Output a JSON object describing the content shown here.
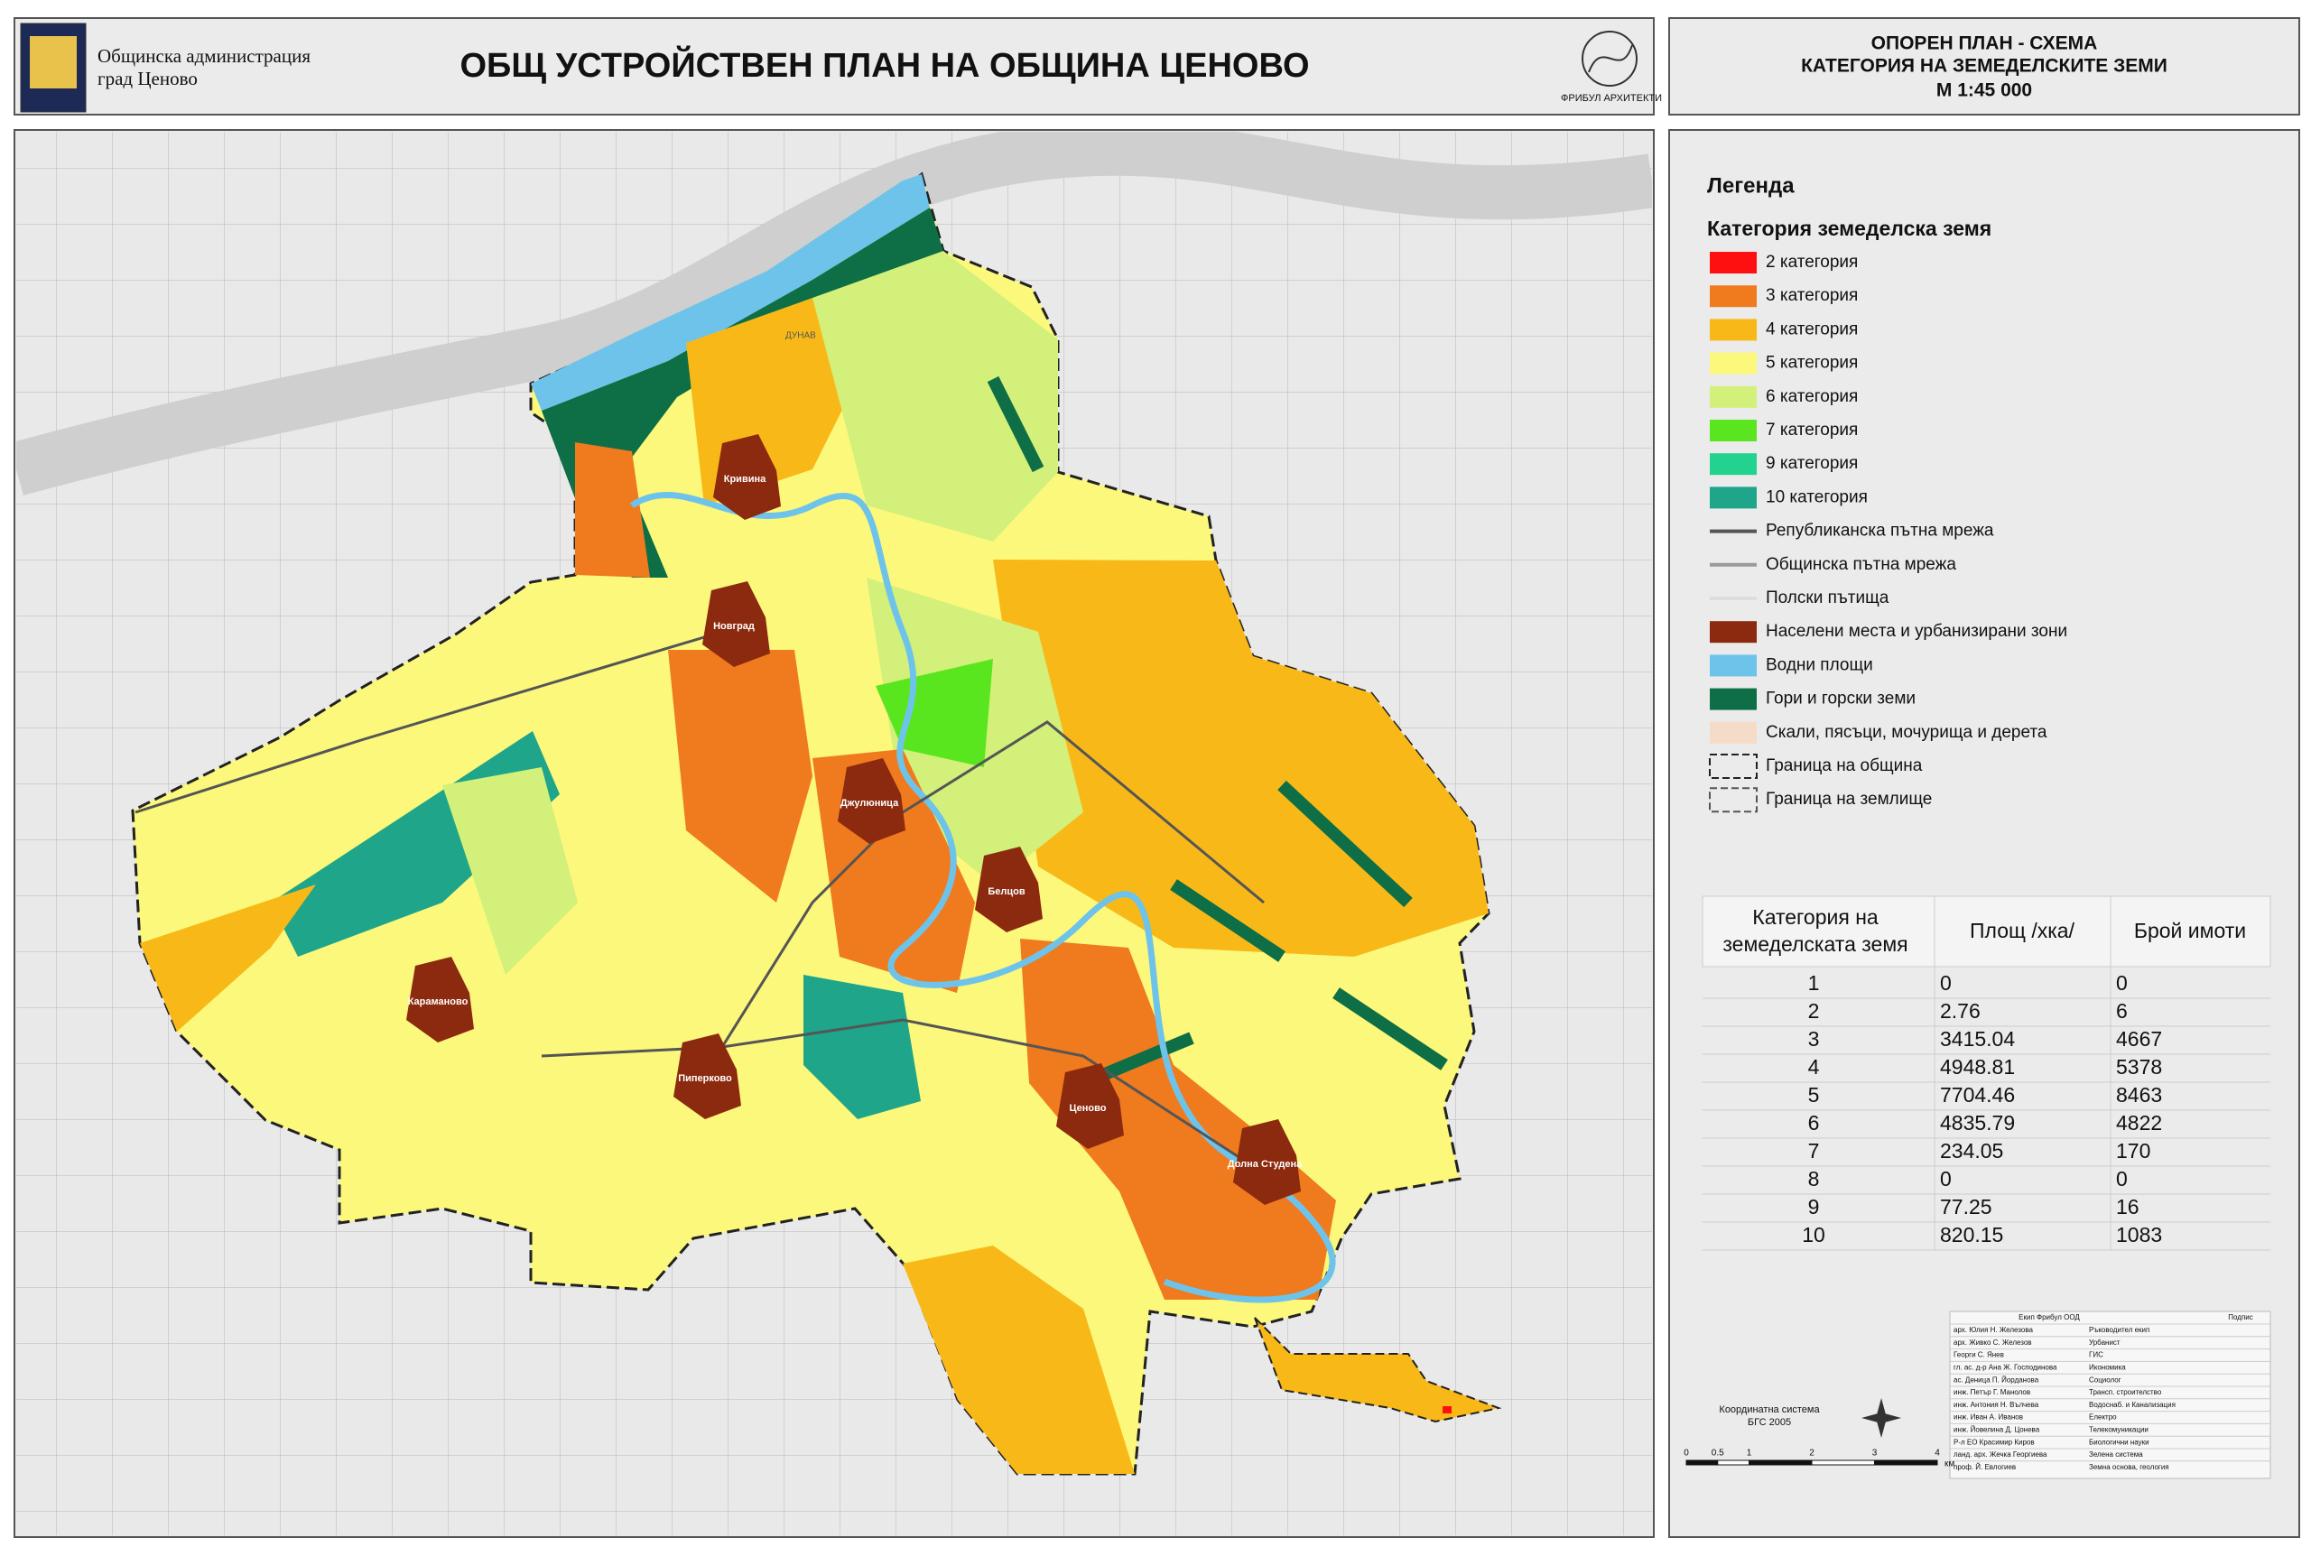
{
  "header": {
    "org_line1": "Общинска администрация",
    "org_line2": "град Ценово",
    "title": "ОБЩ УСТРОЙСТВЕН ПЛАН НА ОБЩИНА ЦЕНОВО",
    "firm": "ФРИБУЛ АРХИТЕКТИ"
  },
  "sheet": {
    "lines": [
      "ОПОРЕН ПЛАН - СХЕМА",
      "КАТЕГОРИЯ НА ЗЕМЕДЕЛСКИТЕ ЗЕМИ",
      "М 1:45 000"
    ]
  },
  "map": {
    "river_label": "ДУНАВ",
    "settlements": [
      "Кривина",
      "Новград",
      "Джулюница",
      "Белцов",
      "Караманово",
      "Пиперково",
      "Ценово",
      "Долна Студена"
    ]
  },
  "legend": {
    "title": "Легенда",
    "subtitle": "Категория земеделска земя",
    "items": [
      {
        "label": "2 категория",
        "color": "#ff1010",
        "kind": "fill"
      },
      {
        "label": "3 категория",
        "color": "#f07a1e",
        "kind": "fill"
      },
      {
        "label": "4 категория",
        "color": "#f8b918",
        "kind": "fill"
      },
      {
        "label": "5 категория",
        "color": "#fbf87c",
        "kind": "fill"
      },
      {
        "label": "6 категория",
        "color": "#d3f07a",
        "kind": "fill"
      },
      {
        "label": "7 категория",
        "color": "#5ae61e",
        "kind": "fill"
      },
      {
        "label": "9 категория",
        "color": "#22d28e",
        "kind": "fill"
      },
      {
        "label": "10 категория",
        "color": "#1ea58a",
        "kind": "fill"
      },
      {
        "label": "Републиканска пътна мрежа",
        "color": "#555555",
        "kind": "line"
      },
      {
        "label": "Общинска пътна мрежа",
        "color": "#9a9a9a",
        "kind": "line"
      },
      {
        "label": "Полски пътища",
        "color": "#dddddd",
        "kind": "line"
      },
      {
        "label": "Населени места и урбанизирани зони",
        "color": "#8b2a0e",
        "kind": "fill"
      },
      {
        "label": "Водни площи",
        "color": "#6ec3ea",
        "kind": "fill"
      },
      {
        "label": "Гори и горски земи",
        "color": "#0e6e46",
        "kind": "fill"
      },
      {
        "label": "Скали, пясъци, мочурища и дерета",
        "color": "#f5dcc8",
        "kind": "fill"
      },
      {
        "label": "Граница на община",
        "color": "#222222",
        "kind": "border"
      },
      {
        "label": "Граница на землище",
        "color": "#555555",
        "kind": "border"
      }
    ]
  },
  "table": {
    "header": [
      [
        "Категория на",
        "земеделската земя"
      ],
      "Площ /хка/",
      "Брой имоти"
    ],
    "rows": [
      [
        1,
        0,
        0
      ],
      [
        2,
        2.76,
        6
      ],
      [
        3,
        3415.04,
        4667
      ],
      [
        4,
        4948.81,
        5378
      ],
      [
        5,
        7704.46,
        8463
      ],
      [
        6,
        4835.79,
        4822
      ],
      [
        7,
        234.05,
        170
      ],
      [
        8,
        0,
        0
      ],
      [
        9,
        77.25,
        16
      ],
      [
        10,
        820.15,
        1083
      ]
    ]
  },
  "team": {
    "header": [
      "Екип Фрибул ООД",
      "Подпис"
    ],
    "rows": [
      [
        "арх. Юлия Н. Железова",
        "Ръководител екип"
      ],
      [
        "арх. Живко С. Железов",
        "Урбанист"
      ],
      [
        "Георги С. Янев",
        "ГИС"
      ],
      [
        "гл. ас. д-р Ана Ж. Господинова",
        "Икономика"
      ],
      [
        "ас. Деница П. Йорданова",
        "Социолог"
      ],
      [
        "инж. Петър Г. Манолов",
        "Трансп. строителство"
      ],
      [
        "инж. Антония Н. Вълчева",
        "Водоснаб. и Канализация"
      ],
      [
        "инж. Иван А. Иванов",
        "Електро"
      ],
      [
        "инж. Йовелина Д. Цонева",
        "Телекомуникации"
      ],
      [
        "Р-л ЕО Красимир Киров",
        "Биологични науки"
      ],
      [
        "ланд. арх. Жечка Георгиева",
        "Зелена система"
      ],
      [
        "проф. Й. Евлогиев",
        "Земна основа, геология"
      ]
    ]
  },
  "coordinates": [
    "Координатна система",
    "БГС 2005"
  ],
  "scale_bar": {
    "ticks": [
      0,
      0.5,
      1,
      2,
      3,
      4
    ],
    "unit": "км"
  }
}
